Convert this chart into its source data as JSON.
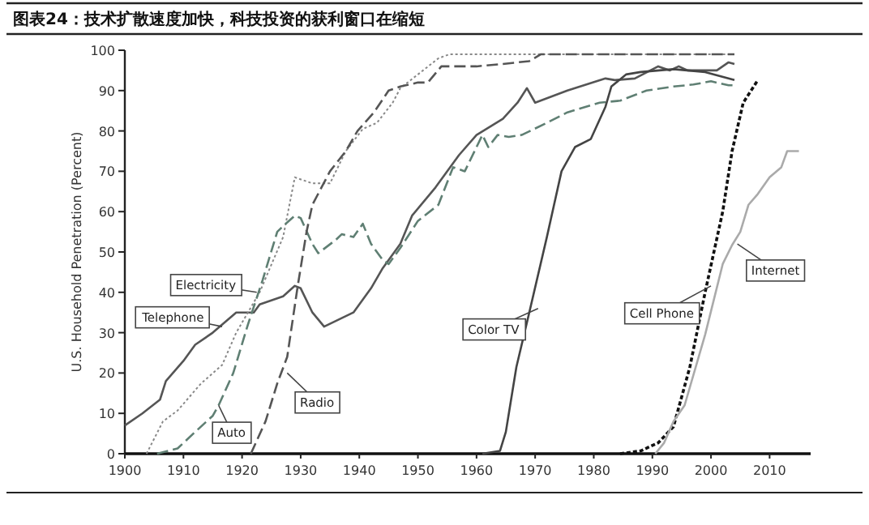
{
  "chart_data": {
    "type": "line",
    "title": "图表24：技术扩散速度加快，科技投资的获利窗口在缩短",
    "ylabel": "U.S. Household Penetration (Percent)",
    "xlim": [
      1900,
      2017
    ],
    "xticks": [
      1900,
      1910,
      1920,
      1930,
      1940,
      1950,
      1960,
      1970,
      1980,
      1990,
      2000,
      2010
    ],
    "ylim": [
      0,
      100
    ],
    "yticks": [
      0,
      10,
      20,
      30,
      40,
      50,
      60,
      70,
      80,
      90,
      100
    ],
    "grid": false,
    "legend": false,
    "marker": "none",
    "series": [
      {
        "name": "Telephone",
        "color": "#555555",
        "line_style": "solid",
        "x": [
          1900,
          1903,
          1906,
          1907,
          1910,
          1912,
          1915,
          1919,
          1922,
          1923,
          1927,
          1929,
          1930,
          1932,
          1934,
          1939,
          1942,
          1944,
          1947,
          1949,
          1953,
          1957,
          1960,
          1964.5,
          1967,
          1968.6,
          1970,
          1975.5,
          1982,
          1983.6,
          1987,
          1991,
          1993,
          1994.5,
          1996,
          1999,
          2001,
          2003,
          2004
        ],
        "values": [
          7,
          10,
          13.4,
          18,
          23,
          27,
          30,
          35,
          35,
          37,
          39,
          41.6,
          41,
          35,
          31.5,
          35,
          41,
          46,
          52,
          59,
          66,
          74,
          79,
          83,
          87,
          90.6,
          87,
          90,
          93,
          92.6,
          93,
          96,
          95,
          96,
          95,
          95,
          95,
          97,
          96.6
        ]
      },
      {
        "name": "Electricity",
        "color": "#888888",
        "line_style": "dotted",
        "x": [
          1903.7,
          1906.5,
          1909,
          1913,
          1916.6,
          1919,
          1923,
          1927,
          1929,
          1932,
          1935,
          1937.7,
          1940.6,
          1943,
          1945.7,
          1947,
          1950,
          1953.5,
          1955.4,
          1970,
          1990,
          2004
        ],
        "values": [
          0,
          8,
          10.7,
          17.4,
          22,
          30,
          40,
          53.7,
          68.5,
          67,
          67,
          75,
          80.5,
          82,
          87,
          90.6,
          94,
          98,
          99,
          99,
          99,
          99
        ]
      },
      {
        "name": "Auto",
        "color": "#5f7f73",
        "line_style": "dashed",
        "x": [
          1905.5,
          1909,
          1912,
          1915,
          1916,
          1918.5,
          1921,
          1923.5,
          1926,
          1927,
          1929,
          1930,
          1932,
          1933,
          1936,
          1937,
          1939,
          1940.6,
          1942,
          1944,
          1945,
          1947,
          1950,
          1953.5,
          1956,
          1958,
          1961,
          1962,
          1963.6,
          1965.5,
          1967.7,
          1972,
          1975.5,
          1981,
          1984.5,
          1989,
          1993.6,
          1997,
          2000,
          2003,
          2004
        ],
        "values": [
          0,
          1.3,
          5.4,
          9.4,
          12,
          20,
          32,
          43,
          55,
          56.4,
          59,
          58.4,
          52,
          49.7,
          53,
          54.4,
          53.7,
          57,
          52,
          48,
          47,
          51,
          57.7,
          61.7,
          71,
          70,
          79,
          76,
          79,
          78.5,
          79,
          82,
          84.6,
          87,
          87.5,
          90,
          91,
          91.5,
          92.3,
          91.3,
          91.3
        ]
      },
      {
        "name": "Radio",
        "color": "#555555",
        "line_style": "dashed",
        "x": [
          1921.5,
          1924,
          1926,
          1927.7,
          1929.5,
          1931,
          1932,
          1935,
          1937.7,
          1939.7,
          1942.5,
          1945,
          1947,
          1950,
          1951.7,
          1954,
          1958,
          1960,
          1964.5,
          1969,
          1971,
          1990,
          2004
        ],
        "values": [
          0,
          8,
          17.4,
          24,
          41.6,
          55,
          61.7,
          70,
          75,
          80,
          84.6,
          90,
          91,
          92,
          92,
          96,
          96,
          96,
          96.6,
          97.3,
          99,
          99,
          99
        ]
      },
      {
        "name": "Color TV",
        "color": "#444444",
        "line_style": "solid",
        "x": [
          1961,
          1964,
          1965,
          1966.8,
          1969,
          1972,
          1974.5,
          1976.8,
          1979.5,
          1982,
          1983,
          1985.5,
          1988,
          1993.6,
          1999,
          2004
        ],
        "values": [
          0,
          0.7,
          5.4,
          21.5,
          35,
          53.7,
          70,
          76,
          78,
          86,
          91,
          94,
          94.6,
          95.3,
          94.6,
          92.6
        ]
      },
      {
        "name": "Cell Phone",
        "color": "#111111",
        "line_style": "dotted",
        "x": [
          1984.5,
          1988,
          1991,
          1993.6,
          1996.4,
          1999,
          2002,
          2003.6,
          2005.5,
          2008
        ],
        "values": [
          0,
          0.7,
          2.7,
          6.7,
          21.5,
          40,
          60,
          75,
          87,
          92.6
        ]
      },
      {
        "name": "Internet",
        "color": "#aaaaaa",
        "line_style": "solid",
        "x": [
          1990.5,
          1992,
          1993.6,
          1995.5,
          1999,
          2002,
          2003.6,
          2005,
          2006.4,
          2008,
          2010,
          2012,
          2013,
          2015
        ],
        "values": [
          0,
          2.7,
          8,
          12,
          29.5,
          47,
          51.7,
          55,
          61.7,
          64.4,
          68.5,
          71,
          75,
          75
        ]
      }
    ]
  }
}
